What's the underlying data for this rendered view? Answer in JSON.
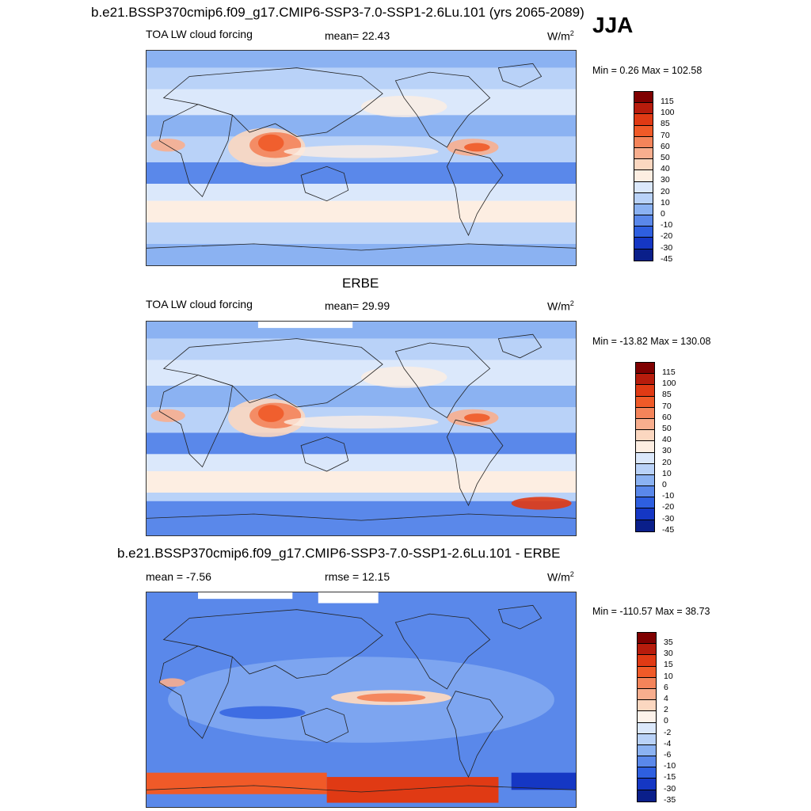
{
  "page": {
    "main_title": "b.e21.BSSP370cmip6.f09_g17.CMIP6-SSP3-7.0-SSP1-2.6Lu.101 (yrs 2065-2089)",
    "season": "JJA"
  },
  "chart_data": [
    {
      "type": "heatmap",
      "panel": "model",
      "title": "",
      "variable_label": "TOA LW cloud forcing",
      "stat_label": "mean=  22.43",
      "mean": 22.43,
      "units_base": "W/m",
      "units_exp": "2",
      "minmax_label": "Min =   0.26 Max = 102.58",
      "min": 0.26,
      "max": 102.58,
      "colorbar_levels": [
        "115",
        "100",
        "85",
        "70",
        "60",
        "50",
        "40",
        "30",
        "20",
        "10",
        "0",
        "-10",
        "-20",
        "-30",
        "-45"
      ]
    },
    {
      "type": "heatmap",
      "panel": "obs",
      "title": "ERBE",
      "variable_label": "TOA LW cloud forcing",
      "stat_label": "mean=  29.99",
      "mean": 29.99,
      "units_base": "W/m",
      "units_exp": "2",
      "minmax_label": "Min = -13.82 Max = 130.08",
      "min": -13.82,
      "max": 130.08,
      "colorbar_levels": [
        "115",
        "100",
        "85",
        "70",
        "60",
        "50",
        "40",
        "30",
        "20",
        "10",
        "0",
        "-10",
        "-20",
        "-30",
        "-45"
      ]
    },
    {
      "type": "heatmap",
      "panel": "difference",
      "title": "b.e21.BSSP370cmip6.f09_g17.CMIP6-SSP3-7.0-SSP1-2.6Lu.101 - ERBE",
      "variable_label": "mean =  -7.56",
      "mean": -7.56,
      "stat_label": "rmse =  12.15",
      "rmse": 12.15,
      "units_base": "W/m",
      "units_exp": "2",
      "minmax_label": "Min = -110.57 Max =  38.73",
      "min": -110.57,
      "max": 38.73,
      "colorbar_levels": [
        "35",
        "30",
        "15",
        "10",
        "6",
        "4",
        "2",
        "0",
        "-2",
        "-4",
        "-6",
        "-10",
        "-15",
        "-30",
        "-35"
      ]
    }
  ],
  "colors": {
    "abs_scale": [
      "#7f0000",
      "#b71c0c",
      "#e03a14",
      "#f05a28",
      "#f4845a",
      "#f8ae8e",
      "#fbd7c0",
      "#fdeee2",
      "#dbe8fb",
      "#b9d2f8",
      "#8bb2f2",
      "#5a88ea",
      "#2e5fe0",
      "#1537c4",
      "#0a1f8a"
    ],
    "diff_scale": [
      "#7f0000",
      "#b71c0c",
      "#e03a14",
      "#f05a28",
      "#f4845a",
      "#f8ae8e",
      "#fbd7c0",
      "#fdf2ea",
      "#dbe8fb",
      "#b9d2f8",
      "#8bb2f2",
      "#5a88ea",
      "#2e5fe0",
      "#1537c4",
      "#0a1f8a"
    ],
    "land": "#222222"
  }
}
